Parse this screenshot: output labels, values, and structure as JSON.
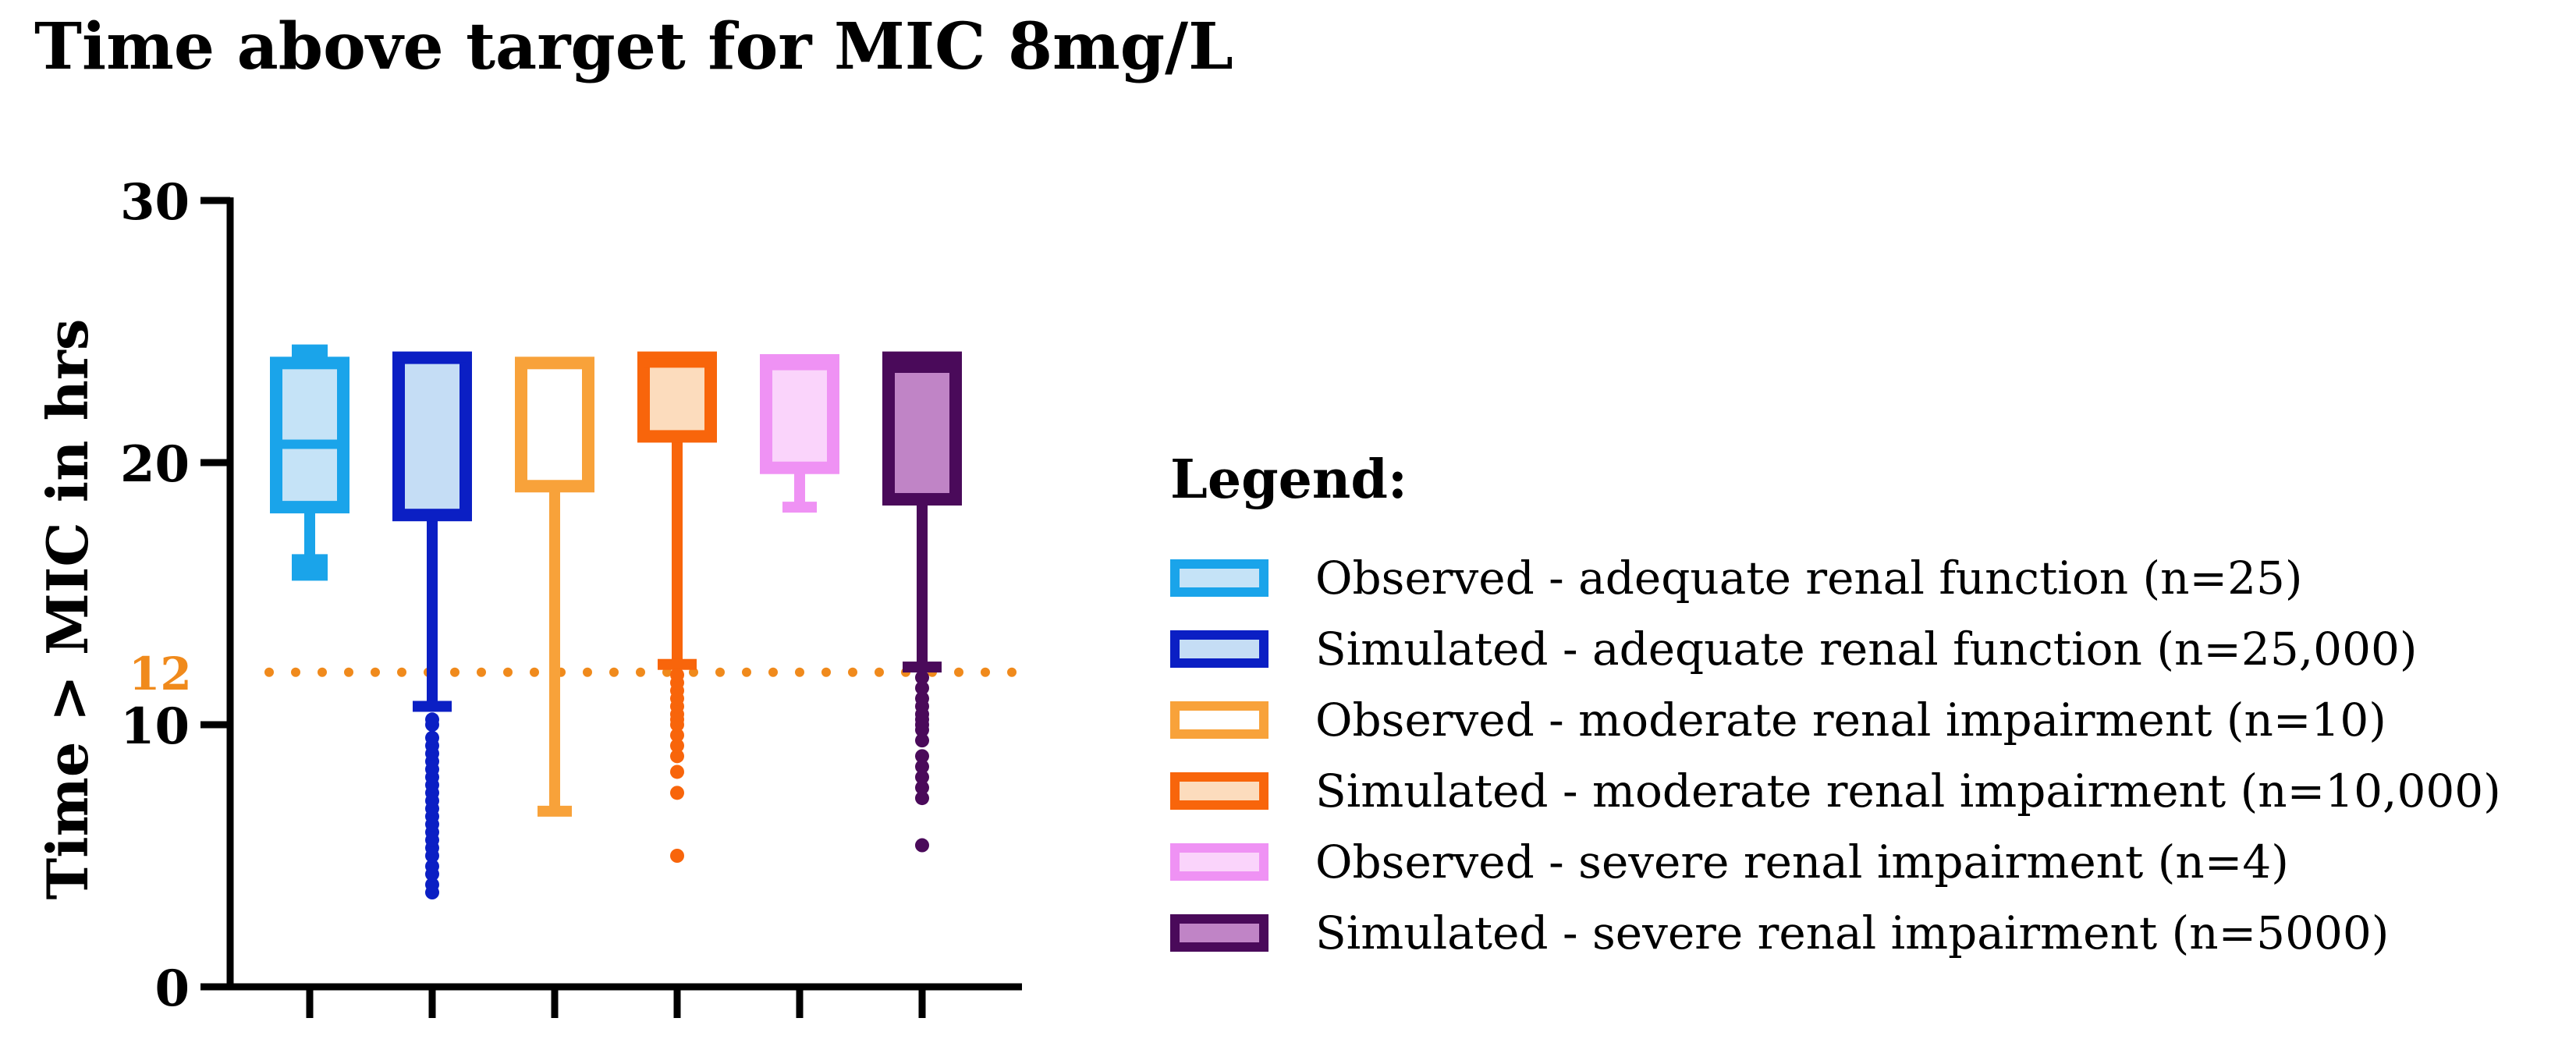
{
  "chart_data": {
    "type": "box",
    "title": "Time above target for MIC 8mg/L",
    "ylabel": "Time > MIC in hrs",
    "ylim": [
      0,
      30
    ],
    "yticks": [
      0,
      10,
      20,
      30
    ],
    "reference_line": {
      "value": 12,
      "label": "12",
      "color": "#f08a1c",
      "style": "dotted"
    },
    "legend_title": "Legend:",
    "series": [
      {
        "name": "Observed - adequate renal function (n=25)",
        "stroke": "#1aa4ea",
        "fill": "#c5e3f7",
        "min": 16,
        "q1": 18.3,
        "median": 20.7,
        "q3": 23.8,
        "max": 24,
        "whisker_cap_style": "thick",
        "outliers": []
      },
      {
        "name": "Simulated - adequate renal function (n=25,000)",
        "stroke": "#0b1fc4",
        "fill": "#c5ddf5",
        "min": 10.7,
        "q1": 18,
        "median": 24,
        "q3": 24,
        "max": 24,
        "whisker_cap_style": "cross",
        "outliers": [
          3.6,
          3.9,
          4.3,
          4.6,
          5,
          5.3,
          5.6,
          5.9,
          6.2,
          6.5,
          6.8,
          7.1,
          7.4,
          7.7,
          8,
          8.3,
          8.6,
          8.9,
          9.2,
          9.5,
          10,
          10.2
        ]
      },
      {
        "name": "Observed - moderate renal impairment (n=10)",
        "stroke": "#f8a23a",
        "fill": "#ffffff",
        "min": 6.7,
        "q1": 19.1,
        "median": 23.8,
        "q3": 23.8,
        "max": 23.8,
        "whisker_cap_style": "flat",
        "outliers": []
      },
      {
        "name": "Simulated - moderate renal impairment (n=10,000)",
        "stroke": "#f8650b",
        "fill": "#fcdcbd",
        "min": 12.3,
        "q1": 21,
        "median": 23.8,
        "q3": 24,
        "max": 24,
        "whisker_cap_style": "cross",
        "outliers": [
          5,
          7.4,
          8.2,
          8.8,
          9.2,
          9.6,
          10,
          10.2,
          10.4,
          10.7,
          11,
          11.3,
          11.6,
          11.9
        ]
      },
      {
        "name": "Observed - severe renal impairment (n=4)",
        "stroke": "#ef92f4",
        "fill": "#fad4fb",
        "min": 18.3,
        "q1": 19.8,
        "median": 23.7,
        "q3": 23.9,
        "max": 23.9,
        "whisker_cap_style": "flat",
        "outliers": []
      },
      {
        "name": "Simulated - severe renal impairment (n=5000)",
        "stroke": "#4a0a5a",
        "fill": "#c084c6",
        "min": 12.2,
        "q1": 18.6,
        "median": 23.6,
        "q3": 24,
        "max": 24,
        "whisker_cap_style": "cross",
        "outliers": [
          5.4,
          7.2,
          7.6,
          8,
          8.4,
          8.8,
          9.4,
          9.8,
          10,
          10.2,
          10.4,
          10.7,
          11,
          11.4,
          11.8
        ]
      }
    ]
  }
}
